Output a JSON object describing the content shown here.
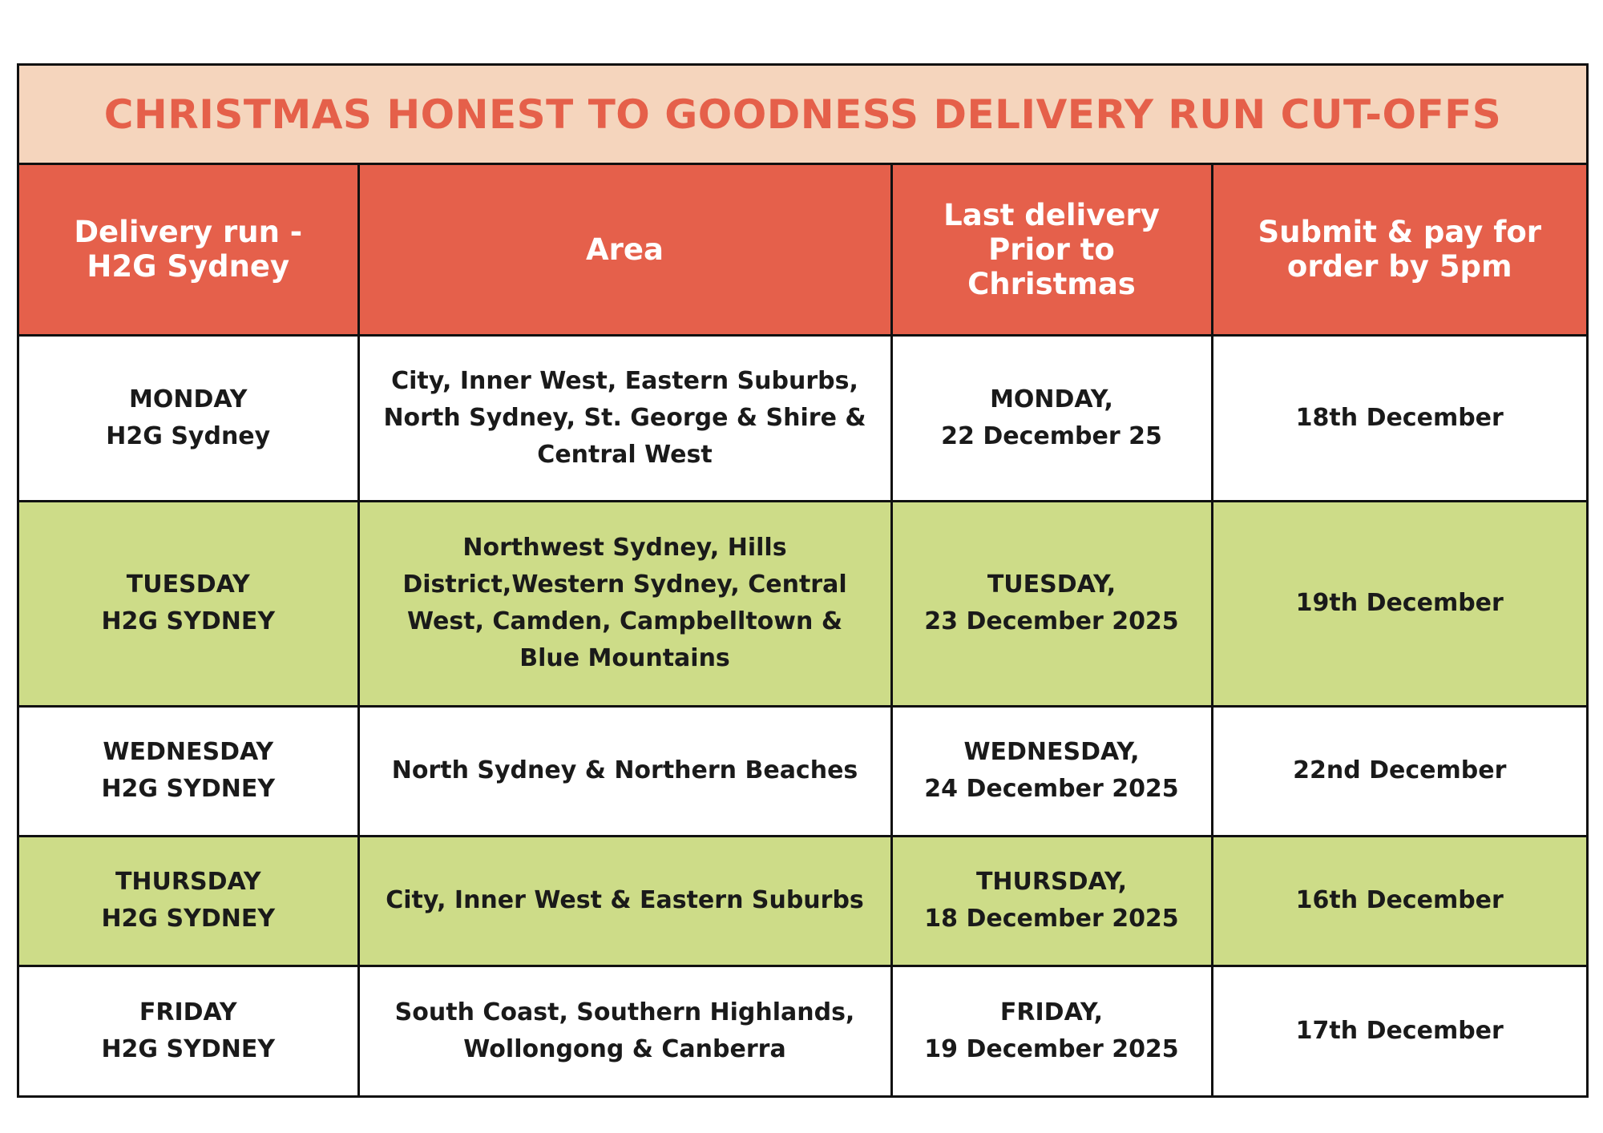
{
  "title": "CHRISTMAS HONEST TO GOODNESS DELIVERY RUN CUT-OFFS",
  "headers": {
    "col1": [
      "Delivery run -",
      "H2G Sydney"
    ],
    "col2": [
      "Area"
    ],
    "col3": [
      "Last delivery",
      "Prior to",
      "Christmas"
    ],
    "col4": [
      "Submit & pay for",
      "order by 5pm"
    ]
  },
  "rows": [
    {
      "run": [
        "MONDAY",
        "H2G Sydney"
      ],
      "area": [
        "City, Inner West, Eastern Suburbs,",
        "North Sydney, St. George & Shire &",
        "Central West"
      ],
      "last_delivery": [
        "MONDAY,",
        "22 December 25"
      ],
      "cutoff": "18th December"
    },
    {
      "run": [
        "TUESDAY",
        "H2G SYDNEY"
      ],
      "area": [
        "Northwest Sydney, Hills",
        "District,Western Sydney, Central",
        "West, Camden, Campbelltown &",
        "Blue Mountains"
      ],
      "last_delivery": [
        "TUESDAY,",
        "23 December 2025"
      ],
      "cutoff": "19th December"
    },
    {
      "run": [
        "WEDNESDAY",
        "H2G SYDNEY"
      ],
      "area": [
        "North Sydney & Northern Beaches"
      ],
      "last_delivery": [
        "WEDNESDAY,",
        "24 December 2025"
      ],
      "cutoff": "22nd December"
    },
    {
      "run": [
        "THURSDAY",
        "H2G SYDNEY"
      ],
      "area": [
        "City, Inner West & Eastern Suburbs"
      ],
      "last_delivery": [
        "THURSDAY,",
        "18 December 2025"
      ],
      "cutoff": "16th December"
    },
    {
      "run": [
        "FRIDAY",
        "H2G SYDNEY"
      ],
      "area": [
        "South Coast, Southern Highlands,",
        "Wollongong & Canberra"
      ],
      "last_delivery": [
        "FRIDAY,",
        "19 December 2025"
      ],
      "cutoff": "17th December"
    }
  ],
  "colors": {
    "title_bg": "#f5d5bd",
    "title_text": "#e5604a",
    "header_bg": "#e5604b",
    "row_green": "#cddc88",
    "row_white": "#ffffff",
    "border": "#111111"
  }
}
